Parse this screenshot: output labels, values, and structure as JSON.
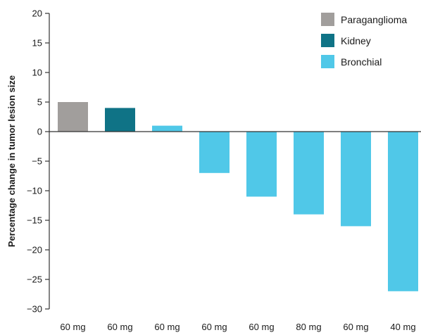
{
  "chart_data": {
    "type": "bar",
    "title": "",
    "xlabel": "",
    "ylabel": "Percentage change in tumor lesion size",
    "ylim": [
      -30,
      20
    ],
    "yticks": [
      20,
      15,
      10,
      5,
      0,
      -5,
      -10,
      -15,
      -20,
      -25,
      -30
    ],
    "ytick_labels": [
      "20",
      "15",
      "10",
      "5",
      "0",
      "−5",
      "−10",
      "−15",
      "−20",
      "−25",
      "−30"
    ],
    "categories": [
      "60 mg",
      "60 mg",
      "60 mg",
      "60 mg",
      "60 mg",
      "80 mg",
      "60 mg",
      "40 mg"
    ],
    "values": [
      5,
      4,
      1,
      -7,
      -11,
      -14,
      -16,
      -27
    ],
    "bar_groups": [
      "Paraganglioma",
      "Kidney",
      "Bronchial",
      "Bronchial",
      "Bronchial",
      "Bronchial",
      "Bronchial",
      "Bronchial"
    ],
    "legend": {
      "placement": "top-right",
      "entries": [
        {
          "name": "Paraganglioma",
          "color": "#a19e9c"
        },
        {
          "name": "Kidney",
          "color": "#0f7386"
        },
        {
          "name": "Bronchial",
          "color": "#50c8e8"
        }
      ]
    },
    "grid": false
  }
}
